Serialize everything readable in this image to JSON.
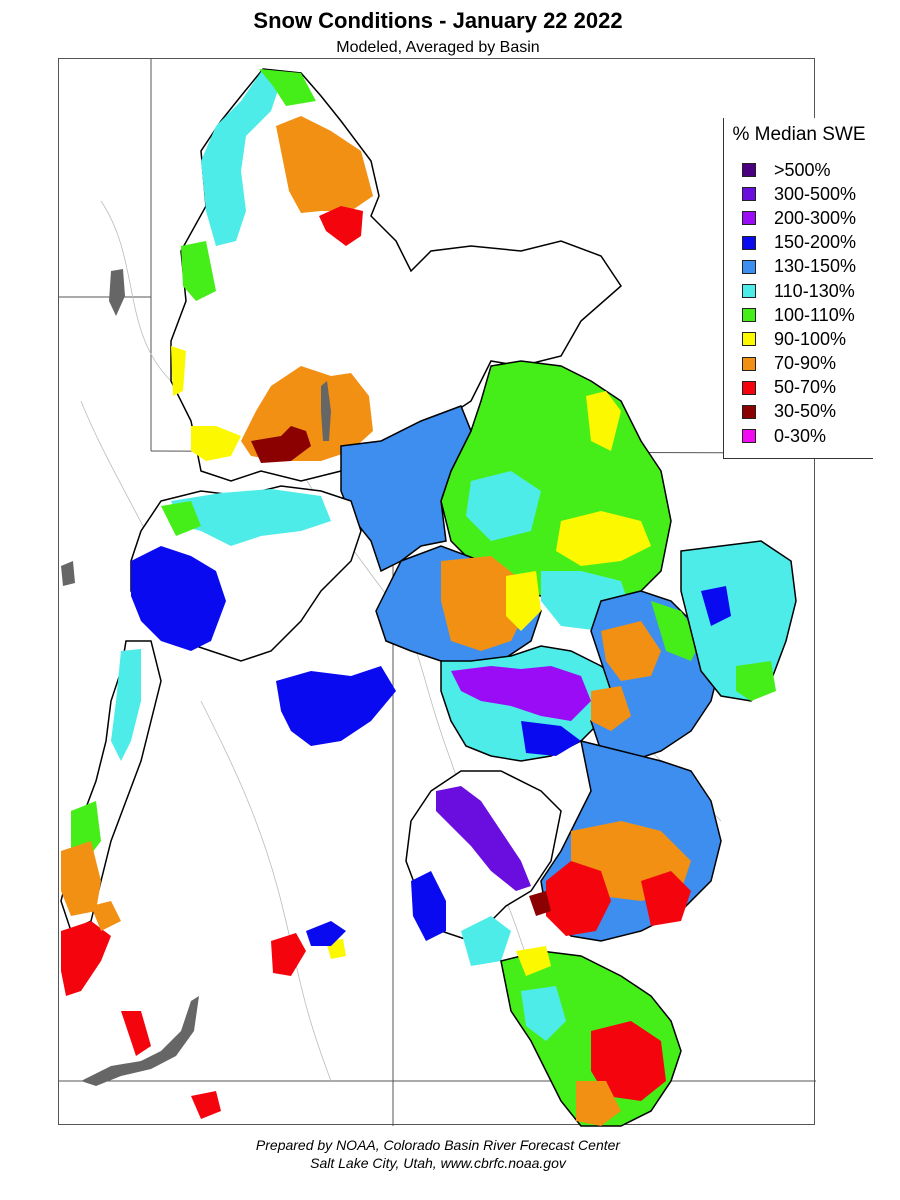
{
  "title": "Snow Conditions - January 22 2022",
  "subtitle": "Modeled, Averaged by Basin",
  "legend": {
    "title": "% Median SWE",
    "items": [
      {
        "label": ">500%",
        "color": "#4b0082"
      },
      {
        "label": "300-500%",
        "color": "#6a0ddf"
      },
      {
        "label": "200-300%",
        "color": "#9a0cf5"
      },
      {
        "label": "150-200%",
        "color": "#0a0af0"
      },
      {
        "label": "130-150%",
        "color": "#3e8ef0"
      },
      {
        "label": "110-130%",
        "color": "#4dece8"
      },
      {
        "label": "100-110%",
        "color": "#46ee19"
      },
      {
        "label": "90-100%",
        "color": "#fbf800"
      },
      {
        "label": "70-90%",
        "color": "#f19013"
      },
      {
        "label": "50-70%",
        "color": "#f4050e"
      },
      {
        "label": "30-50%",
        "color": "#8b0000"
      },
      {
        "label": "0-30%",
        "color": "#f20af2"
      }
    ]
  },
  "footer": {
    "line1": "Prepared by NOAA, Colorado Basin River Forecast Center",
    "line2": "Salt Lake City, Utah, www.cbrfc.noaa.gov"
  }
}
